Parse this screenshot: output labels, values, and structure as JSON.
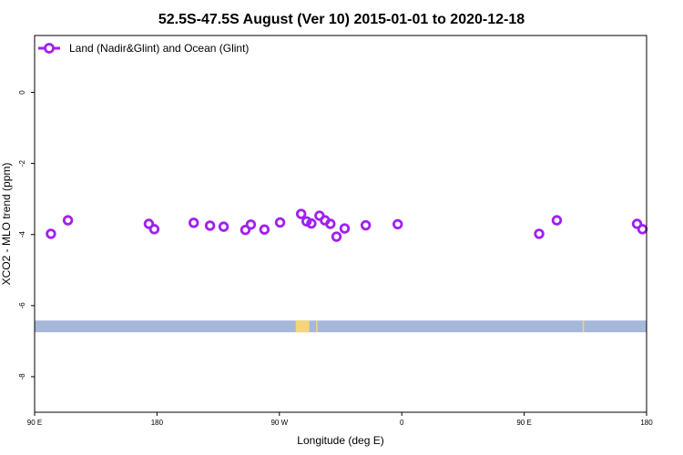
{
  "chart_data": {
    "type": "scatter",
    "title": "52.5S-47.5S August (Ver 10)   2015-01-01 to 2020-12-18",
    "xlabel": "Longitude (deg E)",
    "ylabel": "XCO2 - MLO trend (ppm)",
    "xlim": [
      90,
      540
    ],
    "ylim": [
      -9,
      1.6
    ],
    "x_ticks": [
      {
        "value": 90,
        "label": "90 E"
      },
      {
        "value": 180,
        "label": "180"
      },
      {
        "value": 270,
        "label": "90 W"
      },
      {
        "value": 360,
        "label": "0"
      },
      {
        "value": 450,
        "label": "90 E"
      },
      {
        "value": 540,
        "label": "180"
      }
    ],
    "y_ticks": [
      {
        "value": 0,
        "label": "0"
      },
      {
        "value": -2,
        "label": "-2"
      },
      {
        "value": -4,
        "label": "-4"
      },
      {
        "value": -6,
        "label": "-6"
      },
      {
        "value": -8,
        "label": "-8"
      }
    ],
    "legend": {
      "position": "top-left",
      "entry": "Land (Nadir&Glint) and Ocean (Glint)"
    },
    "series": [
      {
        "name": "Land (Nadir&Glint) and Ocean (Glint)",
        "color": "#a020f0",
        "points": [
          {
            "x": 102,
            "y": -3.98
          },
          {
            "x": 114.5,
            "y": -3.6
          },
          {
            "x": 174,
            "y": -3.7
          },
          {
            "x": 178,
            "y": -3.85
          },
          {
            "x": 207,
            "y": -3.67
          },
          {
            "x": 219,
            "y": -3.75
          },
          {
            "x": 229,
            "y": -3.78
          },
          {
            "x": 245,
            "y": -3.87
          },
          {
            "x": 249,
            "y": -3.72
          },
          {
            "x": 259,
            "y": -3.86
          },
          {
            "x": 270.5,
            "y": -3.66
          },
          {
            "x": 286,
            "y": -3.42
          },
          {
            "x": 290,
            "y": -3.63
          },
          {
            "x": 293.5,
            "y": -3.69
          },
          {
            "x": 299.5,
            "y": -3.47
          },
          {
            "x": 303.5,
            "y": -3.6
          },
          {
            "x": 307.5,
            "y": -3.7
          },
          {
            "x": 312,
            "y": -4.06
          },
          {
            "x": 318,
            "y": -3.83
          },
          {
            "x": 333.5,
            "y": -3.74
          },
          {
            "x": 357,
            "y": -3.71
          },
          {
            "x": 461,
            "y": -3.98
          },
          {
            "x": 474,
            "y": -3.6
          },
          {
            "x": 533,
            "y": -3.7
          },
          {
            "x": 537,
            "y": -3.85
          }
        ]
      }
    ],
    "map_strip": {
      "y_top": -6.42,
      "y_bottom": -6.75,
      "ocean_color": "#a5b8d9",
      "land_color": "#f5d47a",
      "land_segments": [
        {
          "x_start": 282,
          "x_end": 292
        },
        {
          "x_start": 297,
          "x_end": 298
        },
        {
          "x_start": 493,
          "x_end": 494
        }
      ]
    }
  }
}
